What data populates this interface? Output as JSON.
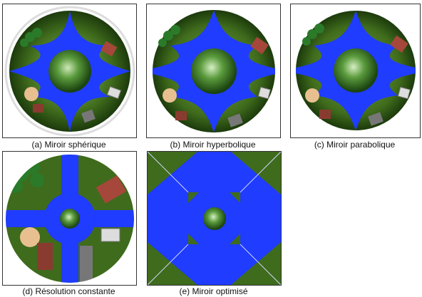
{
  "figure": {
    "captions": {
      "a": "(a)  Miroir sphérique",
      "b": "(b)  Miroir hyperbolique",
      "c": "(c) Miroir parabolique",
      "d": "(d) Résolution constante",
      "e": "(e) Miroir optimisé"
    },
    "colors": {
      "road": "#1f3cff",
      "grass": "#3f6b1c",
      "grass_dark": "#22400e",
      "center_light": "#b8dfa0",
      "center_dark": "#1e4a12",
      "frame": "#333333"
    }
  }
}
